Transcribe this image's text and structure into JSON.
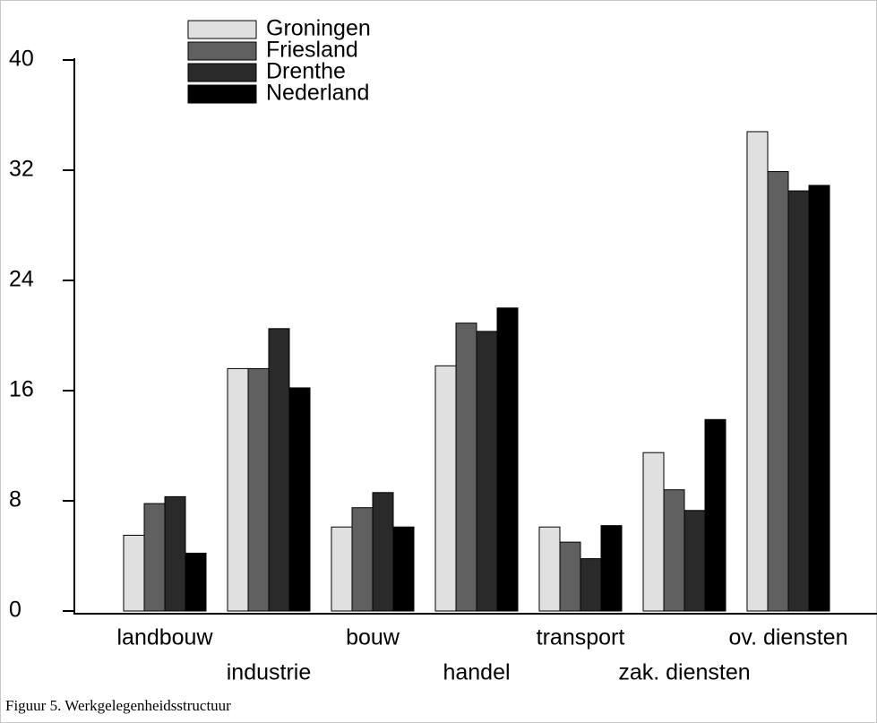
{
  "chart_data": {
    "type": "bar",
    "categories": [
      "landbouw",
      "industrie",
      "bouw",
      "handel",
      "transport",
      "zak. diensten",
      "ov. diensten"
    ],
    "series": [
      {
        "name": "Groningen",
        "color": "#e0e0e0",
        "values": [
          5.5,
          17.6,
          6.1,
          17.8,
          6.1,
          11.5,
          34.8
        ]
      },
      {
        "name": "Friesland",
        "color": "#606060",
        "values": [
          7.8,
          17.6,
          7.5,
          20.9,
          5.0,
          8.8,
          31.9
        ]
      },
      {
        "name": "Drenthe",
        "color": "#2a2a2a",
        "values": [
          8.3,
          20.5,
          8.6,
          20.3,
          3.8,
          7.3,
          30.5
        ]
      },
      {
        "name": "Nederland",
        "color": "#000000",
        "values": [
          4.2,
          16.2,
          6.1,
          22.0,
          6.2,
          13.9,
          30.9
        ]
      }
    ],
    "ylim": [
      0,
      40
    ],
    "yticks": [
      0,
      8,
      16,
      24,
      32,
      40
    ],
    "grid": false
  },
  "caption": "Figuur 5. Werkgelegenheidsstructuur"
}
